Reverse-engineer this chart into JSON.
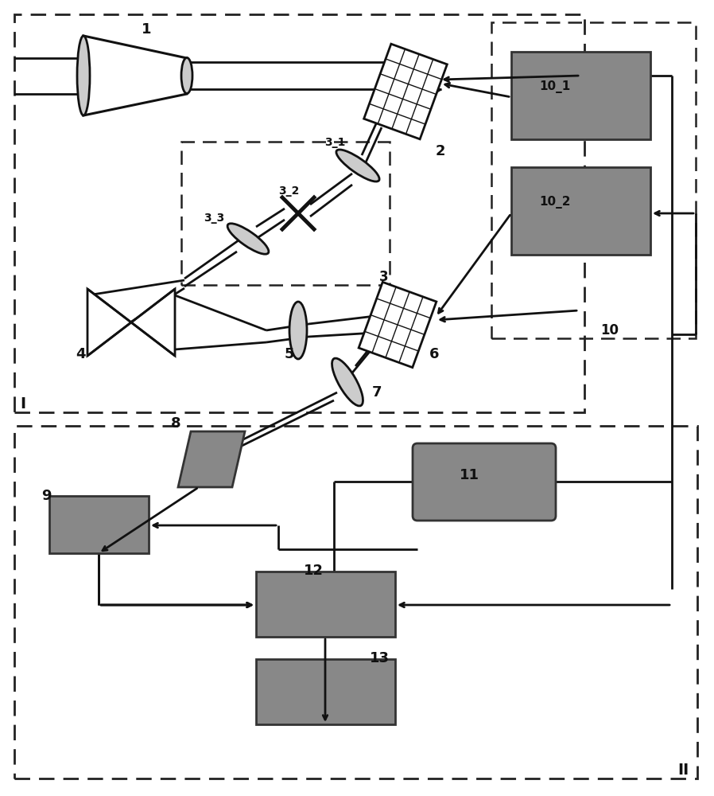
{
  "bg_color": "#ffffff",
  "gray": "#808080",
  "dark_gray": "#666666",
  "black": "#111111",
  "lw_main": 2.0,
  "lw_thin": 1.2,
  "lw_thick": 3.0
}
